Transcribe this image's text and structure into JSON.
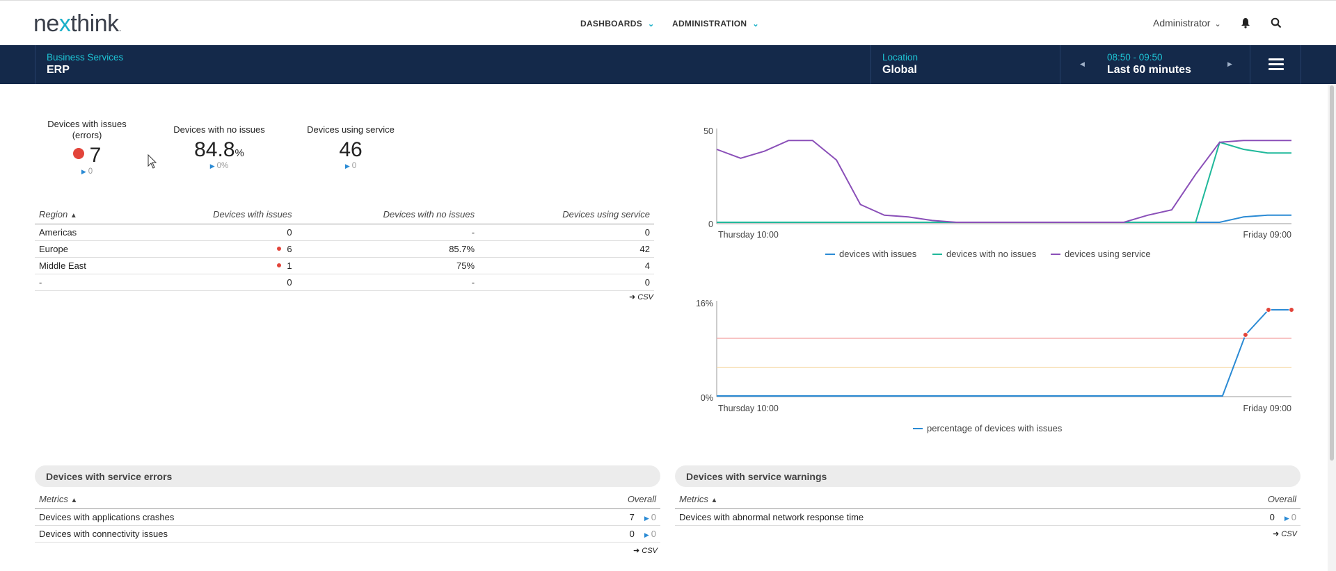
{
  "header": {
    "logo": {
      "pre": "ne",
      "x": "x",
      "post": "think",
      "dot": "."
    },
    "nav": [
      {
        "label": "DASHBOARDS"
      },
      {
        "label": "ADMINISTRATION"
      }
    ],
    "user": "Administrator"
  },
  "context_bar": {
    "service_label": "Business Services",
    "service_value": "ERP",
    "location_label": "Location",
    "location_value": "Global",
    "time_range_label": "08:50 - 09:50",
    "time_range_value": "Last 60 minutes"
  },
  "kpis": [
    {
      "label": "Devices with issues (errors)",
      "value": "7",
      "delta": "0",
      "has_dot": true
    },
    {
      "label": "Devices with no issues",
      "value": "84.8",
      "unit": "%",
      "delta": "0%"
    },
    {
      "label": "Devices using service",
      "value": "46",
      "delta": "0"
    }
  ],
  "region_table": {
    "columns": [
      "Region",
      "Devices with issues",
      "Devices with no issues",
      "Devices using service"
    ],
    "rows": [
      {
        "region": "Americas",
        "issues": "0",
        "no_issues": "-",
        "using": "0",
        "dot": false
      },
      {
        "region": "Europe",
        "issues": "6",
        "no_issues": "85.7%",
        "using": "42",
        "dot": true
      },
      {
        "region": "Middle East",
        "issues": "1",
        "no_issues": "75%",
        "using": "4",
        "dot": true
      },
      {
        "region": "-",
        "issues": "0",
        "no_issues": "-",
        "using": "0",
        "dot": false
      }
    ],
    "csv": "CSV"
  },
  "charts": {
    "top": {
      "y_ticks": [
        "50",
        "0"
      ],
      "x_start": "Thursday 10:00",
      "x_end": "Friday 09:00",
      "legend": [
        "devices with issues",
        "devices with no issues",
        "devices using service"
      ],
      "colors": [
        "#2a8ad4",
        "#1fb89a",
        "#8a4fb8"
      ]
    },
    "bottom": {
      "y_ticks": [
        "16%",
        "0%"
      ],
      "x_start": "Thursday 10:00",
      "x_end": "Friday 09:00",
      "legend": [
        "percentage of devices with issues"
      ],
      "colors": [
        "#2a8ad4"
      ],
      "threshold_colors": [
        "#f4a0a0",
        "#f5d6a0"
      ]
    }
  },
  "chart_data": [
    {
      "type": "line",
      "x_start": "Thursday 10:00",
      "x_end": "Friday 09:00",
      "ylim": [
        0,
        50
      ],
      "y_ticks": [
        0,
        50
      ],
      "legend_placement": "bottom",
      "series": [
        {
          "name": "devices with issues",
          "values": [
            0,
            0,
            0,
            0,
            0,
            0,
            0,
            0,
            0,
            0,
            0,
            0,
            0,
            0,
            0,
            0,
            0,
            0,
            0,
            0,
            0,
            0,
            3,
            4,
            4
          ]
        },
        {
          "name": "devices with no issues",
          "values": [
            0,
            0,
            0,
            0,
            0,
            0,
            0,
            0,
            0,
            0,
            0,
            0,
            0,
            0,
            0,
            0,
            0,
            0,
            0,
            0,
            0,
            45,
            41,
            39,
            39
          ]
        },
        {
          "name": "devices using service",
          "values": [
            41,
            36,
            40,
            46,
            46,
            35,
            10,
            4,
            3,
            1,
            0,
            0,
            0,
            0,
            0,
            0,
            0,
            0,
            4,
            7,
            27,
            45,
            46,
            46,
            46
          ]
        }
      ]
    },
    {
      "type": "line",
      "x_start": "Thursday 10:00",
      "x_end": "Friday 09:00",
      "ylim": [
        0,
        16
      ],
      "y_ticks": [
        "0%",
        "16%"
      ],
      "legend_placement": "bottom",
      "series": [
        {
          "name": "percentage of devices with issues",
          "values": [
            0,
            0,
            0,
            0,
            0,
            0,
            0,
            0,
            0,
            0,
            0,
            0,
            0,
            0,
            0,
            0,
            0,
            0,
            0,
            0,
            0,
            0,
            0,
            11,
            15.5,
            15.5
          ]
        }
      ]
    }
  ],
  "errors_section": {
    "title": "Devices with service errors",
    "columns": [
      "Metrics",
      "Overall"
    ],
    "rows": [
      {
        "metric": "Devices with applications crashes",
        "value": "7",
        "delta": "0"
      },
      {
        "metric": "Devices with connectivity issues",
        "value": "0",
        "delta": "0"
      }
    ],
    "csv": "CSV"
  },
  "warnings_section": {
    "title": "Devices with service warnings",
    "columns": [
      "Metrics",
      "Overall"
    ],
    "rows": [
      {
        "metric": "Devices with abnormal network response time",
        "value": "0",
        "delta": "0"
      }
    ],
    "csv": "CSV"
  }
}
